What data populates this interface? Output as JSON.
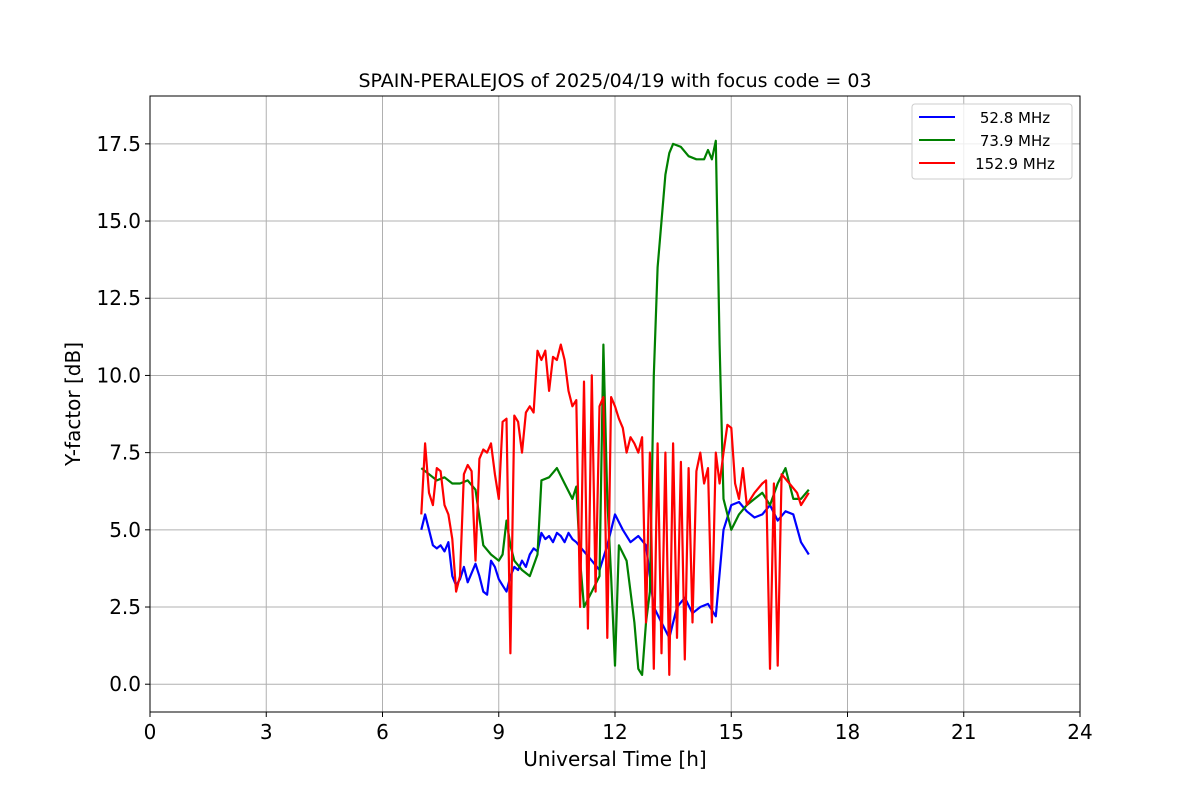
{
  "chart_data": {
    "type": "line",
    "title": "SPAIN-PERALEJOS of 2025/04/19 with focus code = 03",
    "xlabel": "Universal Time [h]",
    "ylabel": "Y-factor [dB]",
    "xlim": [
      0,
      24
    ],
    "ylim": [
      -0.9,
      19.05
    ],
    "xticks": [
      0,
      3,
      6,
      9,
      12,
      15,
      18,
      21,
      24
    ],
    "xtick_labels": [
      "0",
      "3",
      "6",
      "9",
      "12",
      "15",
      "18",
      "21",
      "24"
    ],
    "yticks": [
      0,
      2.5,
      5,
      7.5,
      10,
      12.5,
      15,
      17.5
    ],
    "ytick_labels": [
      "0.0",
      "2.5",
      "5.0",
      "7.5",
      "10.0",
      "12.5",
      "15.0",
      "17.5"
    ],
    "grid": true,
    "legend_placement": "top-right",
    "series": [
      {
        "name": "52.8 MHz",
        "color": "#0000ff",
        "x": [
          7.0,
          7.1,
          7.2,
          7.3,
          7.4,
          7.5,
          7.6,
          7.7,
          7.8,
          7.9,
          8.0,
          8.1,
          8.2,
          8.3,
          8.4,
          8.5,
          8.6,
          8.7,
          8.8,
          8.9,
          9.0,
          9.1,
          9.2,
          9.3,
          9.4,
          9.5,
          9.6,
          9.7,
          9.8,
          9.9,
          10.0,
          10.1,
          10.2,
          10.3,
          10.4,
          10.5,
          10.6,
          10.7,
          10.8,
          10.9,
          11.0,
          11.2,
          11.4,
          11.6,
          11.8,
          12.0,
          12.2,
          12.4,
          12.6,
          12.8,
          13.0,
          13.2,
          13.4,
          13.6,
          13.8,
          14.0,
          14.2,
          14.4,
          14.6,
          14.8,
          15.0,
          15.2,
          15.4,
          15.6,
          15.8,
          16.0,
          16.2,
          16.4,
          16.6,
          16.8,
          17.0
        ],
        "y": [
          5.0,
          5.5,
          5.0,
          4.5,
          4.4,
          4.5,
          4.3,
          4.6,
          3.5,
          3.2,
          3.4,
          3.8,
          3.3,
          3.6,
          3.9,
          3.5,
          3.0,
          2.9,
          4.0,
          3.8,
          3.4,
          3.2,
          3.0,
          3.5,
          3.8,
          3.7,
          4.0,
          3.8,
          4.2,
          4.4,
          4.3,
          4.9,
          4.7,
          4.8,
          4.6,
          4.9,
          4.8,
          4.6,
          4.9,
          4.7,
          4.6,
          4.3,
          4.0,
          3.7,
          4.5,
          5.5,
          5.0,
          4.6,
          4.8,
          4.5,
          2.5,
          2.0,
          1.5,
          2.5,
          2.8,
          2.3,
          2.5,
          2.6,
          2.2,
          5.0,
          5.8,
          5.9,
          5.6,
          5.4,
          5.5,
          5.8,
          5.3,
          5.6,
          5.5,
          4.6,
          4.2
        ]
      },
      {
        "name": "73.9 MHz",
        "color": "#008000",
        "x": [
          7.0,
          7.2,
          7.4,
          7.6,
          7.8,
          8.0,
          8.2,
          8.4,
          8.6,
          8.8,
          9.0,
          9.1,
          9.2,
          9.3,
          9.4,
          9.6,
          9.8,
          10.0,
          10.1,
          10.3,
          10.5,
          10.7,
          10.9,
          11.0,
          11.1,
          11.2,
          11.4,
          11.6,
          11.7,
          11.8,
          11.9,
          12.0,
          12.1,
          12.3,
          12.5,
          12.6,
          12.7,
          12.8,
          12.9,
          13.0,
          13.1,
          13.2,
          13.3,
          13.4,
          13.5,
          13.7,
          13.9,
          14.1,
          14.3,
          14.4,
          14.5,
          14.6,
          14.7,
          14.8,
          15.0,
          15.2,
          15.4,
          15.6,
          15.8,
          16.0,
          16.2,
          16.4,
          16.6,
          16.8,
          17.0
        ],
        "y": [
          7.0,
          6.8,
          6.6,
          6.7,
          6.5,
          6.5,
          6.6,
          6.3,
          4.5,
          4.2,
          4.0,
          4.2,
          5.3,
          4.5,
          4.0,
          3.7,
          3.5,
          4.2,
          6.6,
          6.7,
          7.0,
          6.5,
          6.0,
          6.4,
          4.0,
          2.5,
          3.0,
          3.5,
          11.0,
          6.0,
          3.5,
          0.6,
          4.5,
          4.0,
          2.0,
          0.5,
          0.3,
          2.0,
          3.0,
          10.0,
          13.5,
          15.0,
          16.5,
          17.2,
          17.5,
          17.4,
          17.1,
          17.0,
          17.0,
          17.3,
          17.0,
          17.6,
          11.0,
          6.0,
          5.0,
          5.5,
          5.8,
          6.0,
          6.2,
          5.8,
          6.5,
          7.0,
          6.0,
          6.0,
          6.3
        ]
      },
      {
        "name": "152.9 MHz",
        "color": "#ff0000",
        "x": [
          7.0,
          7.1,
          7.2,
          7.3,
          7.4,
          7.5,
          7.6,
          7.7,
          7.8,
          7.9,
          8.0,
          8.1,
          8.2,
          8.3,
          8.4,
          8.5,
          8.6,
          8.7,
          8.8,
          8.9,
          9.0,
          9.1,
          9.2,
          9.3,
          9.4,
          9.5,
          9.6,
          9.7,
          9.8,
          9.9,
          10.0,
          10.1,
          10.2,
          10.3,
          10.4,
          10.5,
          10.6,
          10.7,
          10.8,
          10.9,
          11.0,
          11.1,
          11.2,
          11.3,
          11.4,
          11.5,
          11.6,
          11.7,
          11.8,
          11.9,
          12.0,
          12.1,
          12.2,
          12.3,
          12.4,
          12.5,
          12.6,
          12.7,
          12.8,
          12.9,
          13.0,
          13.1,
          13.2,
          13.3,
          13.4,
          13.5,
          13.6,
          13.7,
          13.8,
          13.9,
          14.0,
          14.1,
          14.2,
          14.3,
          14.4,
          14.5,
          14.6,
          14.7,
          14.8,
          14.9,
          15.0,
          15.1,
          15.2,
          15.3,
          15.4,
          15.5,
          15.6,
          15.8,
          15.9,
          16.0,
          16.1,
          16.2,
          16.3,
          16.5,
          16.7,
          16.8,
          17.0
        ],
        "y": [
          5.5,
          7.8,
          6.2,
          5.8,
          7.0,
          6.9,
          5.8,
          5.5,
          4.7,
          3.0,
          3.5,
          6.8,
          7.1,
          6.9,
          4.0,
          7.3,
          7.6,
          7.5,
          7.8,
          6.8,
          6.0,
          8.5,
          8.6,
          1.0,
          8.7,
          8.5,
          7.5,
          8.8,
          9.0,
          8.8,
          10.8,
          10.5,
          10.8,
          9.5,
          10.6,
          10.5,
          11.0,
          10.5,
          9.5,
          9.0,
          9.2,
          2.5,
          9.8,
          1.8,
          10.0,
          3.0,
          9.0,
          9.3,
          1.5,
          9.3,
          9.0,
          8.6,
          8.3,
          7.5,
          8.0,
          7.8,
          7.5,
          8.0,
          2.0,
          7.5,
          0.5,
          7.8,
          1.0,
          7.5,
          0.3,
          7.8,
          1.5,
          7.2,
          0.8,
          7.0,
          2.0,
          6.9,
          7.5,
          6.5,
          7.0,
          2.0,
          7.5,
          6.5,
          7.5,
          8.4,
          8.3,
          6.5,
          6.0,
          7.0,
          5.8,
          6.0,
          6.2,
          6.5,
          6.6,
          0.5,
          6.5,
          0.6,
          6.8,
          6.5,
          6.2,
          5.8,
          6.2
        ]
      }
    ]
  }
}
